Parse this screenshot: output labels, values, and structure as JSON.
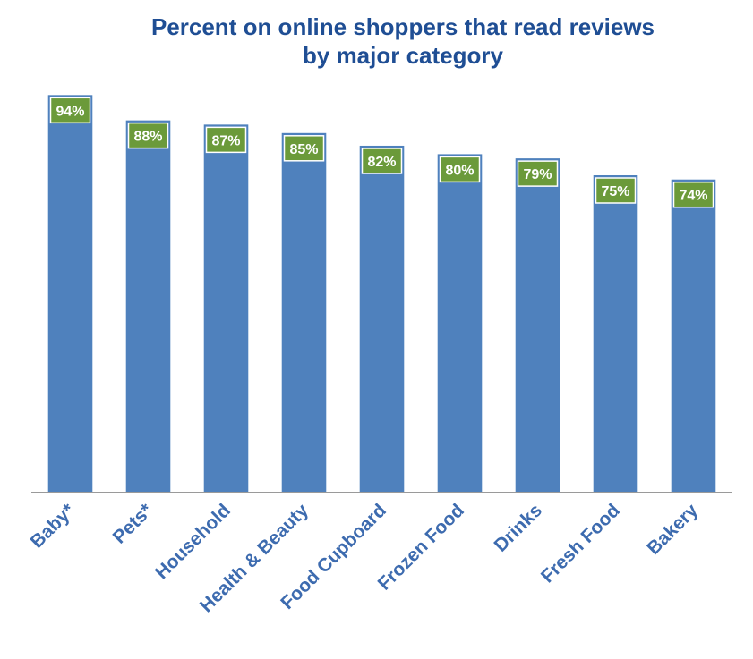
{
  "chart_data": {
    "type": "bar",
    "title": [
      "Percent on online shoppers that read reviews",
      "by major category"
    ],
    "categories": [
      "Baby*",
      "Pets*",
      "Household",
      "Health & Beauty",
      "Food Cupboard",
      "Frozen Food",
      "Drinks",
      "Fresh Food",
      "Bakery"
    ],
    "values": [
      94,
      88,
      87,
      85,
      82,
      80,
      79,
      75,
      74
    ],
    "data_labels": [
      "94%",
      "88%",
      "87%",
      "85%",
      "82%",
      "80%",
      "79%",
      "75%",
      "74%"
    ],
    "ylim": [
      0,
      100
    ],
    "xlabel": "",
    "ylabel": "",
    "grid": false,
    "legend": "none",
    "colors": {
      "bar": "#4F81BD",
      "label_box": "#6B9A3A",
      "title": "#1F4E94",
      "category_text": "#3D6BAF"
    }
  }
}
